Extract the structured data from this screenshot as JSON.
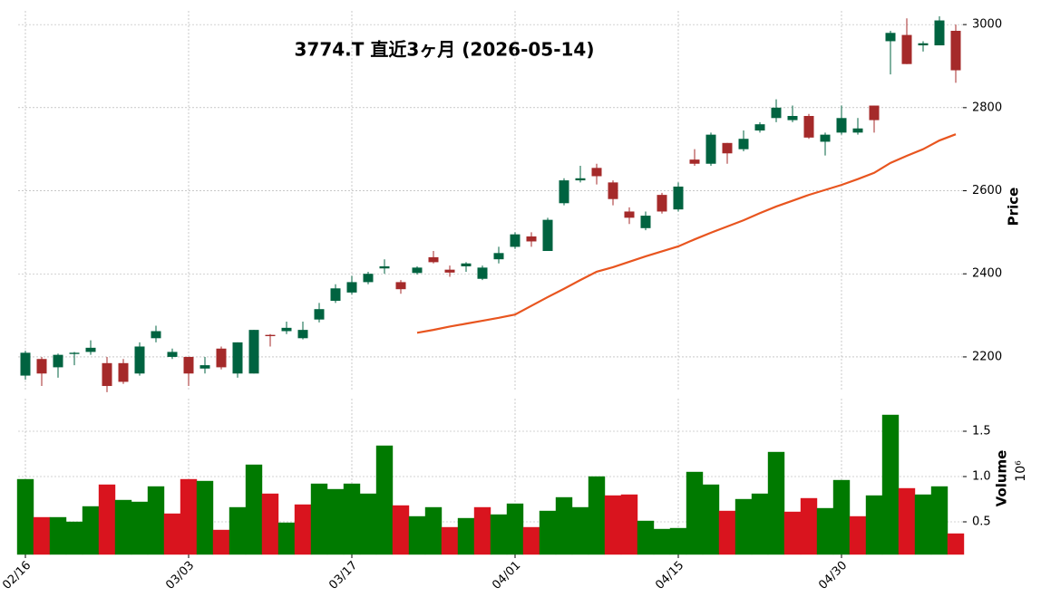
{
  "chart_data": {
    "type": "candlestick",
    "title": "3774.T 直近3ヶ月 (2026-05-14)",
    "categories": [
      "02/16",
      null,
      null,
      null,
      null,
      null,
      null,
      null,
      null,
      null,
      "03/03",
      null,
      null,
      null,
      null,
      null,
      null,
      null,
      null,
      null,
      "03/17",
      null,
      null,
      null,
      null,
      null,
      null,
      null,
      null,
      null,
      "04/01",
      null,
      null,
      null,
      null,
      null,
      null,
      null,
      null,
      null,
      "04/15",
      null,
      null,
      null,
      null,
      null,
      null,
      null,
      null,
      null,
      "04/30",
      null,
      null,
      null,
      null,
      null,
      null,
      null
    ],
    "open": [
      2155,
      2195,
      2175,
      2207,
      2212,
      2185,
      2185,
      2160,
      2245,
      2200,
      2200,
      2172,
      2220,
      2160,
      2160,
      2253,
      2262,
      2245,
      2290,
      2335,
      2355,
      2380,
      2413,
      2380,
      2402,
      2440,
      2410,
      2418,
      2388,
      2435,
      2465,
      2490,
      2455,
      2570,
      2625,
      2655,
      2620,
      2550,
      2510,
      2590,
      2555,
      2675,
      2665,
      2715,
      2700,
      2745,
      2775,
      2770,
      2780,
      2718,
      2740,
      2740,
      2805,
      2960,
      2975,
      2950,
      2950,
      2985
    ],
    "high": [
      2215,
      2200,
      2208,
      2212,
      2240,
      2200,
      2195,
      2235,
      2275,
      2220,
      2200,
      2200,
      2225,
      2235,
      2265,
      2255,
      2285,
      2285,
      2330,
      2375,
      2395,
      2405,
      2435,
      2385,
      2418,
      2455,
      2420,
      2428,
      2420,
      2465,
      2500,
      2500,
      2535,
      2630,
      2660,
      2665,
      2625,
      2560,
      2550,
      2595,
      2620,
      2700,
      2740,
      2715,
      2745,
      2765,
      2820,
      2805,
      2785,
      2740,
      2805,
      2775,
      2805,
      2985,
      3015,
      2960,
      3020,
      3000
    ],
    "low": [
      2145,
      2130,
      2150,
      2180,
      2205,
      2115,
      2135,
      2155,
      2235,
      2195,
      2130,
      2160,
      2170,
      2150,
      2160,
      2225,
      2255,
      2242,
      2283,
      2330,
      2350,
      2375,
      2400,
      2352,
      2398,
      2425,
      2393,
      2405,
      2385,
      2425,
      2460,
      2465,
      2455,
      2565,
      2620,
      2615,
      2565,
      2520,
      2505,
      2545,
      2550,
      2660,
      2660,
      2665,
      2695,
      2740,
      2765,
      2765,
      2725,
      2685,
      2735,
      2735,
      2740,
      2880,
      2905,
      2935,
      2950,
      2860
    ],
    "close": [
      2210,
      2160,
      2205,
      2210,
      2222,
      2130,
      2140,
      2225,
      2262,
      2212,
      2160,
      2180,
      2175,
      2235,
      2265,
      2250,
      2270,
      2265,
      2315,
      2365,
      2380,
      2400,
      2418,
      2363,
      2415,
      2428,
      2403,
      2425,
      2415,
      2450,
      2495,
      2478,
      2530,
      2625,
      2630,
      2635,
      2580,
      2535,
      2540,
      2550,
      2610,
      2665,
      2735,
      2690,
      2725,
      2760,
      2800,
      2780,
      2728,
      2735,
      2775,
      2750,
      2770,
      2980,
      2905,
      2955,
      3010,
      2890
    ],
    "up_color": "#006340",
    "down_color": "#a52a2a",
    "ylabel": "Price",
    "ylim": [
      2117,
      3033
    ],
    "yticks": [
      2200,
      2400,
      2600,
      2800,
      3000
    ],
    "grid": true,
    "ma": {
      "color": "#e8551f",
      "values": [
        null,
        null,
        null,
        null,
        null,
        null,
        null,
        null,
        null,
        null,
        null,
        null,
        null,
        null,
        null,
        null,
        null,
        null,
        null,
        null,
        null,
        null,
        null,
        null,
        2258,
        2265,
        2273,
        2280,
        2287,
        2294,
        2302,
        2323,
        2344,
        2364,
        2385,
        2405,
        2416,
        2429,
        2442,
        2454,
        2466,
        2483,
        2499,
        2514,
        2529,
        2546,
        2562,
        2576,
        2590,
        2602,
        2614,
        2628,
        2643,
        2667,
        2684,
        2700,
        2721,
        2736
      ]
    },
    "volume": {
      "label": "Volume",
      "multiplier": "10⁶",
      "values": [
        0.97,
        0.55,
        0.55,
        0.5,
        0.67,
        0.91,
        0.74,
        0.72,
        0.89,
        0.59,
        0.97,
        0.95,
        0.41,
        0.66,
        1.13,
        0.81,
        0.49,
        0.69,
        0.92,
        0.86,
        0.92,
        0.81,
        1.34,
        0.68,
        0.56,
        0.66,
        0.44,
        0.54,
        0.66,
        0.58,
        0.7,
        0.44,
        0.62,
        0.77,
        0.66,
        1.0,
        0.79,
        0.8,
        0.51,
        0.42,
        0.43,
        1.05,
        0.91,
        0.62,
        0.75,
        0.81,
        1.27,
        0.61,
        0.76,
        0.65,
        0.96,
        0.56,
        0.79,
        1.68,
        0.87,
        0.8,
        0.89,
        0.37
      ],
      "colors": [
        "#007a00",
        "#d9141e",
        "#007a00",
        "#007a00",
        "#007a00",
        "#d9141e",
        "#007a00",
        "#007a00",
        "#007a00",
        "#d9141e",
        "#d9141e",
        "#007a00",
        "#d9141e",
        "#007a00",
        "#007a00",
        "#d9141e",
        "#007a00",
        "#d9141e",
        "#007a00",
        "#007a00",
        "#007a00",
        "#007a00",
        "#007a00",
        "#d9141e",
        "#007a00",
        "#007a00",
        "#d9141e",
        "#007a00",
        "#d9141e",
        "#007a00",
        "#007a00",
        "#d9141e",
        "#007a00",
        "#007a00",
        "#007a00",
        "#007a00",
        "#d9141e",
        "#d9141e",
        "#007a00",
        "#007a00",
        "#007a00",
        "#007a00",
        "#007a00",
        "#d9141e",
        "#007a00",
        "#007a00",
        "#007a00",
        "#d9141e",
        "#d9141e",
        "#007a00",
        "#007a00",
        "#d9141e",
        "#007a00",
        "#007a00",
        "#d9141e",
        "#007a00",
        "#007a00",
        "#d9141e"
      ],
      "ylim": [
        0.14,
        1.86
      ],
      "yticks": [
        0.5,
        {
          "value": 1,
          "label": "1.0"
        },
        1.5
      ]
    }
  }
}
